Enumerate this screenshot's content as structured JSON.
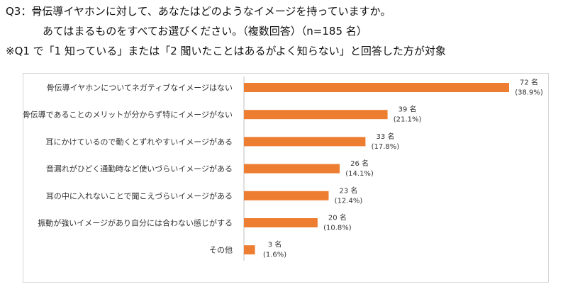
{
  "question": {
    "line1": "Q3：骨伝導イヤホンに対して、あなたはどのようなイメージを持っていますか。",
    "line2": "あてはまるものをすべてお選びください。（複数回答）（n=185 名）",
    "line3": "※Q1 で「1 知っている」または「2 聞いたことはあるがよく知らない」と回答した方が対象"
  },
  "chart_data": {
    "type": "bar",
    "orientation": "horizontal",
    "categories": [
      "骨伝導イヤホンについてネガティブなイメージはない",
      "骨伝導であることのメリットが分からず特にイメージがない",
      "耳にかけているので動くとずれやすいイメージがある",
      "音漏れがひどく通勤時など使いづらいイメージがある",
      "耳の中に入れないことで聞こえづらいイメージがある",
      "振動が強いイメージがあり自分には合わない感じがする",
      "その他"
    ],
    "values": [
      72,
      39,
      33,
      26,
      23,
      20,
      3
    ],
    "value_labels": [
      "72 名",
      "39 名",
      "33 名",
      "26 名",
      "23 名",
      "20 名",
      "3 名"
    ],
    "percent_labels": [
      "(38.9%)",
      "(21.1%)",
      "(17.8%)",
      "(14.1%)",
      "(12.4%)",
      "(10.8%)",
      "(1.6%)"
    ],
    "bar_color": "#ED7D31",
    "xlim": [
      0,
      72
    ],
    "grid": false,
    "legend": "none"
  }
}
